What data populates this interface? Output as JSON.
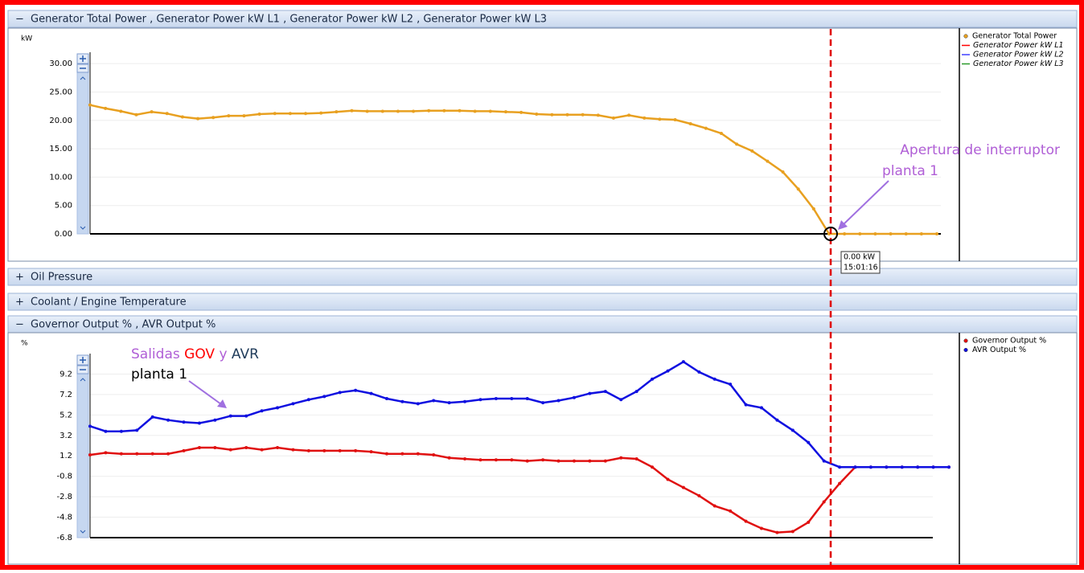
{
  "panels": [
    {
      "toggle": "−",
      "title": "Generator Total Power , Generator Power kW L1 , Generator Power kW L2 , Generator Power kW L3"
    },
    {
      "toggle": "+",
      "title": "Oil Pressure"
    },
    {
      "toggle": "+",
      "title": "Coolant / Engine Temperature"
    },
    {
      "toggle": "−",
      "title": "Governor Output % , AVR Output %"
    }
  ],
  "tooltip": [
    "0.00 kW",
    "15:01:16"
  ],
  "annotations": {
    "breaker": [
      "Apertura de interruptor",
      "planta 1"
    ],
    "outputs": [
      {
        "text": "Salidas",
        "color": "#b05fd6"
      },
      {
        "text": "GOV",
        "color": "#ff0000"
      },
      {
        "text": "y",
        "color": "#b05fd6"
      },
      {
        "text": "AVR",
        "color": "#1f3b5a"
      },
      {
        "text": "planta 1",
        "color": "#b05fd6"
      }
    ]
  },
  "chart_data": [
    {
      "type": "line",
      "ylabel": "kW",
      "ylim": [
        0,
        32
      ],
      "yticks": [
        {
          "value": 0,
          "label": "0.00"
        },
        {
          "value": 5,
          "label": "5.00"
        },
        {
          "value": 10,
          "label": "10.00"
        },
        {
          "value": 15,
          "label": "15.00"
        },
        {
          "value": 20,
          "label": "20.00"
        },
        {
          "value": 25,
          "label": "25.00"
        },
        {
          "value": 30,
          "label": "30.00"
        }
      ],
      "grid": true,
      "series": [
        {
          "name": "Generator Total Power",
          "color": "#e8a020",
          "values": [
            22.7,
            22.1,
            21.6,
            21.0,
            21.5,
            21.2,
            20.6,
            20.3,
            20.5,
            20.8,
            20.8,
            21.1,
            21.2,
            21.2,
            21.2,
            21.3,
            21.5,
            21.7,
            21.6,
            21.6,
            21.6,
            21.6,
            21.7,
            21.7,
            21.7,
            21.6,
            21.6,
            21.5,
            21.4,
            21.1,
            21.0,
            21.0,
            21.0,
            20.9,
            20.4,
            20.9,
            20.4,
            20.2,
            20.1,
            19.4,
            18.6,
            17.7,
            15.8,
            14.6,
            12.8,
            10.9,
            7.9,
            4.4,
            0,
            0,
            0,
            0,
            0,
            0,
            0,
            0
          ]
        },
        {
          "name": "Generator Power kW L1",
          "color": "#ff0000",
          "values": [
            null,
            null,
            null,
            null,
            null,
            null,
            null,
            null,
            null,
            null,
            null,
            null,
            null,
            null,
            null,
            null,
            null,
            null,
            null,
            null,
            null,
            null,
            null,
            null,
            null,
            null,
            null,
            null,
            null,
            null,
            null,
            null,
            null,
            null,
            null,
            null,
            null,
            null,
            null,
            null,
            null,
            null,
            null,
            null,
            null,
            null,
            null,
            null,
            null,
            null,
            null,
            null,
            null,
            null,
            null,
            null
          ]
        },
        {
          "name": "Generator Power kW L2",
          "color": "#4040ff",
          "values": [
            null,
            null,
            null,
            null,
            null,
            null,
            null,
            null,
            null,
            null,
            null,
            null,
            null,
            null,
            null,
            null,
            null,
            null,
            null,
            null,
            null,
            null,
            null,
            null,
            null,
            null,
            null,
            null,
            null,
            null,
            null,
            null,
            null,
            null,
            null,
            null,
            null,
            null,
            null,
            null,
            null,
            null,
            null,
            null,
            null,
            null,
            null,
            null,
            null,
            null,
            null,
            null,
            null,
            null,
            null,
            null
          ]
        },
        {
          "name": "Generator Power kW L3",
          "color": "#2a9a2a",
          "values": [
            null,
            null,
            null,
            null,
            null,
            null,
            null,
            null,
            null,
            null,
            null,
            null,
            null,
            null,
            null,
            null,
            null,
            null,
            null,
            null,
            null,
            null,
            null,
            null,
            null,
            null,
            null,
            null,
            null,
            null,
            null,
            null,
            null,
            null,
            null,
            null,
            null,
            null,
            null,
            null,
            null,
            null,
            null,
            null,
            null,
            null,
            null,
            null,
            null,
            null,
            null,
            null,
            null,
            null,
            null,
            null
          ]
        }
      ]
    },
    {
      "type": "line",
      "ylabel": "%",
      "ylim": [
        -6.8,
        11.2
      ],
      "yticks": [
        -6.8,
        -4.8,
        -2.8,
        -0.8,
        1.2,
        3.2,
        5.2,
        7.2,
        9.2
      ],
      "grid": true,
      "series": [
        {
          "name": "Governor Output %",
          "color": "#e01010",
          "values": [
            1.3,
            1.5,
            1.4,
            1.4,
            1.4,
            1.4,
            1.7,
            2.0,
            2.0,
            1.8,
            2.0,
            1.8,
            2.0,
            1.8,
            1.7,
            1.7,
            1.7,
            1.7,
            1.6,
            1.4,
            1.4,
            1.4,
            1.3,
            1.0,
            0.9,
            0.8,
            0.8,
            0.8,
            0.7,
            0.8,
            0.7,
            0.7,
            0.7,
            0.7,
            1.0,
            0.9,
            0.1,
            -1.1,
            -1.9,
            -2.7,
            -3.7,
            -4.2,
            -5.2,
            -5.9,
            -6.3,
            -6.2,
            -5.3,
            -3.3,
            -1.5,
            0.1,
            0.1,
            0.1,
            0.1,
            0.1,
            0.1,
            0.1
          ]
        },
        {
          "name": "AVR Output %",
          "color": "#1010e0",
          "values": [
            4.1,
            3.6,
            3.6,
            3.7,
            5.0,
            4.7,
            4.5,
            4.4,
            4.7,
            5.1,
            5.1,
            5.6,
            5.9,
            6.3,
            6.7,
            7.0,
            7.4,
            7.6,
            7.3,
            6.8,
            6.5,
            6.3,
            6.6,
            6.4,
            6.5,
            6.7,
            6.8,
            6.8,
            6.8,
            6.4,
            6.6,
            6.9,
            7.3,
            7.5,
            6.7,
            7.5,
            8.7,
            9.5,
            10.4,
            9.4,
            8.7,
            8.2,
            6.2,
            5.9,
            4.7,
            3.7,
            2.5,
            0.7,
            0.1,
            0.1,
            0.1,
            0.1,
            0.1,
            0.1,
            0.1,
            0.1
          ]
        }
      ]
    }
  ]
}
